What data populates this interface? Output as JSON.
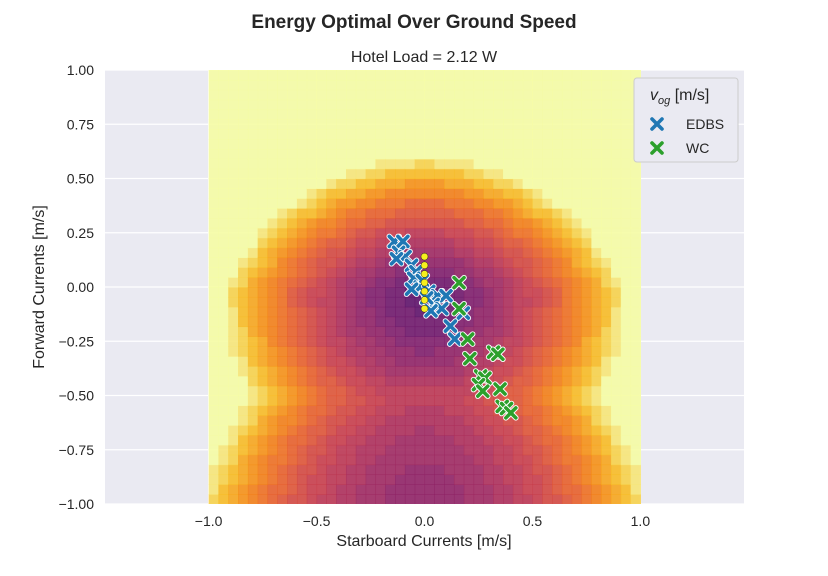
{
  "chart_data": {
    "type": "contour",
    "title": "Energy Optimal Over Ground Speed",
    "subtitle": "Hotel Load = 2.12 W",
    "xlabel": "Starboard Currents [m/s]",
    "ylabel": "Forward Currents [m/s]",
    "xlim": [
      -1.48,
      1.48
    ],
    "ylim": [
      -1.0,
      1.0
    ],
    "xticks": [
      -1.0,
      -0.5,
      0.0,
      0.5,
      1.0
    ],
    "xtick_labels": [
      "−1.0",
      "−0.5",
      "0.0",
      "0.5",
      "1.0"
    ],
    "yticks": [
      -1.0,
      -0.75,
      -0.5,
      -0.25,
      0.0,
      0.25,
      0.5,
      0.75,
      1.0
    ],
    "ytick_labels": [
      "−1.00",
      "−0.75",
      "−0.50",
      "−0.25",
      "0.00",
      "0.25",
      "0.50",
      "0.75",
      "1.00"
    ],
    "grid": true,
    "background": "#eaeaf2",
    "contour_domain": {
      "x": [
        -1.0,
        1.0
      ],
      "y": [
        -1.0,
        1.0
      ]
    },
    "colormap": "inferno-like",
    "legend": {
      "title": "v_og [m/s]",
      "title_main": "v",
      "title_sub": "og",
      "title_rest": " [m/s]",
      "placement": "top-right",
      "entries": [
        "EDBS",
        "WC"
      ]
    },
    "series": [
      {
        "name": "EDBS",
        "marker": "x",
        "color": "#1f77b4",
        "points": [
          [
            -0.14,
            0.21
          ],
          [
            -0.1,
            0.21
          ],
          [
            -0.12,
            0.16
          ],
          [
            -0.09,
            0.14
          ],
          [
            -0.13,
            0.13
          ],
          [
            -0.06,
            0.1
          ],
          [
            -0.04,
            0.07
          ],
          [
            -0.05,
            0.04
          ],
          [
            -0.01,
            0.03
          ],
          [
            -0.02,
            0.0
          ],
          [
            -0.06,
            -0.01
          ],
          [
            0.02,
            -0.02
          ],
          [
            0.06,
            -0.04
          ],
          [
            0.1,
            -0.04
          ],
          [
            0.04,
            -0.08
          ],
          [
            0.08,
            -0.1
          ],
          [
            0.16,
            -0.1
          ],
          [
            0.18,
            -0.12
          ],
          [
            0.12,
            -0.18
          ],
          [
            0.14,
            -0.24
          ],
          [
            0.01,
            -0.05
          ],
          [
            0.03,
            -0.11
          ]
        ]
      },
      {
        "name": "WC",
        "marker": "x",
        "color": "#2ca02c",
        "points": [
          [
            0.16,
            0.02
          ],
          [
            0.16,
            -0.1
          ],
          [
            0.2,
            -0.24
          ],
          [
            0.21,
            -0.33
          ],
          [
            0.32,
            -0.3
          ],
          [
            0.34,
            -0.31
          ],
          [
            0.26,
            -0.41
          ],
          [
            0.28,
            -0.42
          ],
          [
            0.25,
            -0.45
          ],
          [
            0.27,
            -0.48
          ],
          [
            0.35,
            -0.47
          ],
          [
            0.36,
            -0.55
          ],
          [
            0.38,
            -0.56
          ],
          [
            0.4,
            -0.58
          ]
        ]
      },
      {
        "name": "",
        "marker": "o",
        "color": "#f6f01e",
        "points": [
          [
            0.0,
            0.14
          ],
          [
            0.0,
            0.1
          ],
          [
            0.0,
            0.06
          ],
          [
            0.0,
            0.02
          ],
          [
            0.0,
            -0.02
          ],
          [
            0.0,
            -0.06
          ],
          [
            0.0,
            -0.1
          ]
        ]
      }
    ]
  }
}
